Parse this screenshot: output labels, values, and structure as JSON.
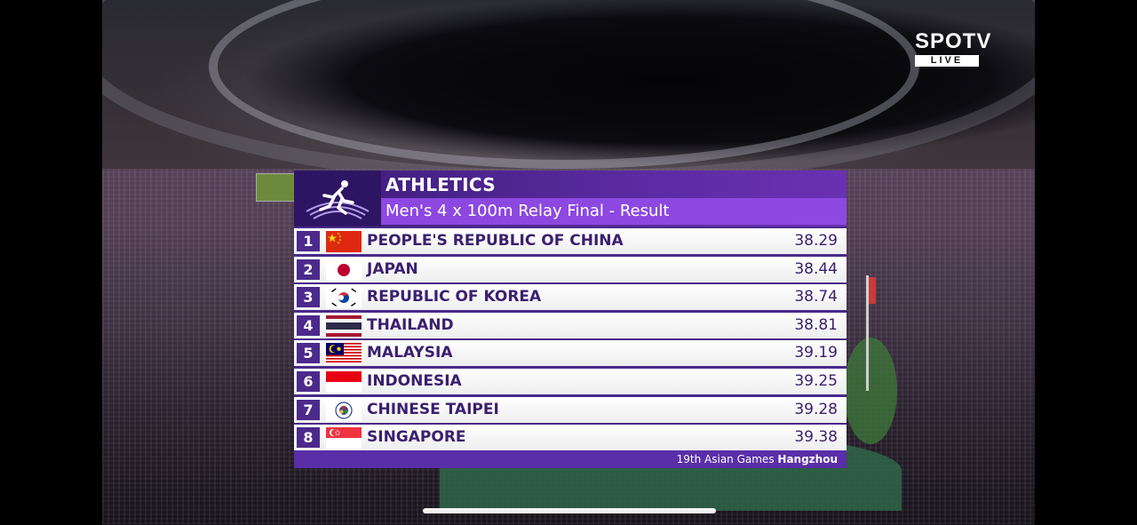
{
  "broadcaster": {
    "name": "SPOTV",
    "live_label": "LIVE"
  },
  "graphic": {
    "sport": "ATHLETICS",
    "event_title": "Men's 4 x 100m Relay Final - Result",
    "footer_event": "19th Asian Games",
    "footer_city": "Hangzhou",
    "emblem_icon": "athletics-pictogram-icon"
  },
  "results": [
    {
      "rank": "1",
      "country": "PEOPLE'S REPUBLIC OF CHINA",
      "time": "38.29",
      "flag_icon": "flag-china-icon"
    },
    {
      "rank": "2",
      "country": "JAPAN",
      "time": "38.44",
      "flag_icon": "flag-japan-icon"
    },
    {
      "rank": "3",
      "country": "REPUBLIC OF KOREA",
      "time": "38.74",
      "flag_icon": "flag-korea-icon"
    },
    {
      "rank": "4",
      "country": "THAILAND",
      "time": "38.81",
      "flag_icon": "flag-thailand-icon"
    },
    {
      "rank": "5",
      "country": "MALAYSIA",
      "time": "39.19",
      "flag_icon": "flag-malaysia-icon"
    },
    {
      "rank": "6",
      "country": "INDONESIA",
      "time": "39.25",
      "flag_icon": "flag-indonesia-icon"
    },
    {
      "rank": "7",
      "country": "CHINESE TAIPEI",
      "time": "39.28",
      "flag_icon": "flag-chinese-taipei-icon"
    },
    {
      "rank": "8",
      "country": "SINGAPORE",
      "time": "39.38",
      "flag_icon": "flag-singapore-icon"
    }
  ],
  "colors": {
    "panel_dark": "#3b1d77",
    "panel_accent": "#8c48e0",
    "row_text": "#3a1f6e"
  }
}
